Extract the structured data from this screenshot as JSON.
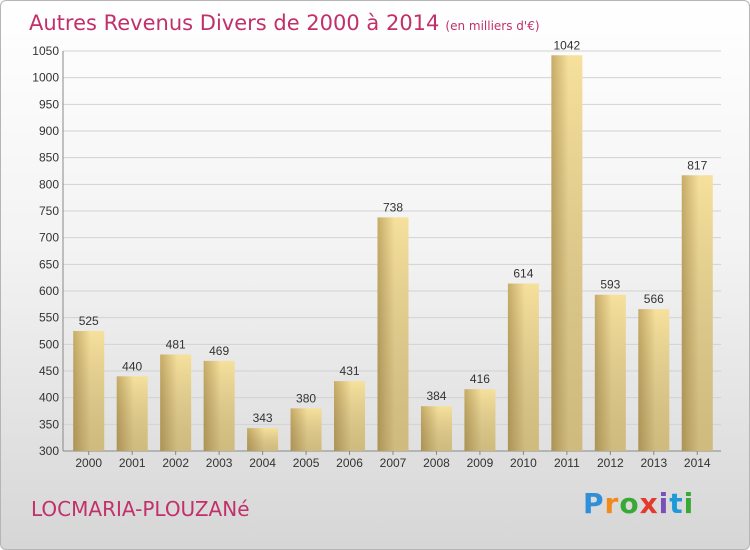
{
  "title": "Autres Revenus Divers de 2000 à 2014",
  "unit": "(en milliers d'€)",
  "location": "LOCMARIA-PLOUZANé",
  "brand": [
    "P",
    "r",
    "o",
    "x",
    "i",
    "t",
    "i"
  ],
  "colors": {
    "title": "#c2306a",
    "bar_light": "#f6e09c",
    "bar_dark": "#c7ac67",
    "grid": "#d2d2d2"
  },
  "chart_data": {
    "type": "bar",
    "title": "Autres Revenus Divers de 2000 à 2014",
    "xlabel": "",
    "ylabel": "",
    "categories": [
      "2000",
      "2001",
      "2002",
      "2003",
      "2004",
      "2005",
      "2006",
      "2007",
      "2008",
      "2009",
      "2010",
      "2011",
      "2012",
      "2013",
      "2014"
    ],
    "values": [
      525,
      440,
      481,
      469,
      343,
      380,
      431,
      738,
      384,
      416,
      614,
      1042,
      593,
      566,
      817
    ],
    "ylim": [
      300,
      1050
    ],
    "yticks": [
      300,
      350,
      400,
      450,
      500,
      550,
      600,
      650,
      700,
      750,
      800,
      850,
      900,
      950,
      1000,
      1050
    ],
    "grid": true,
    "legend": "none"
  }
}
